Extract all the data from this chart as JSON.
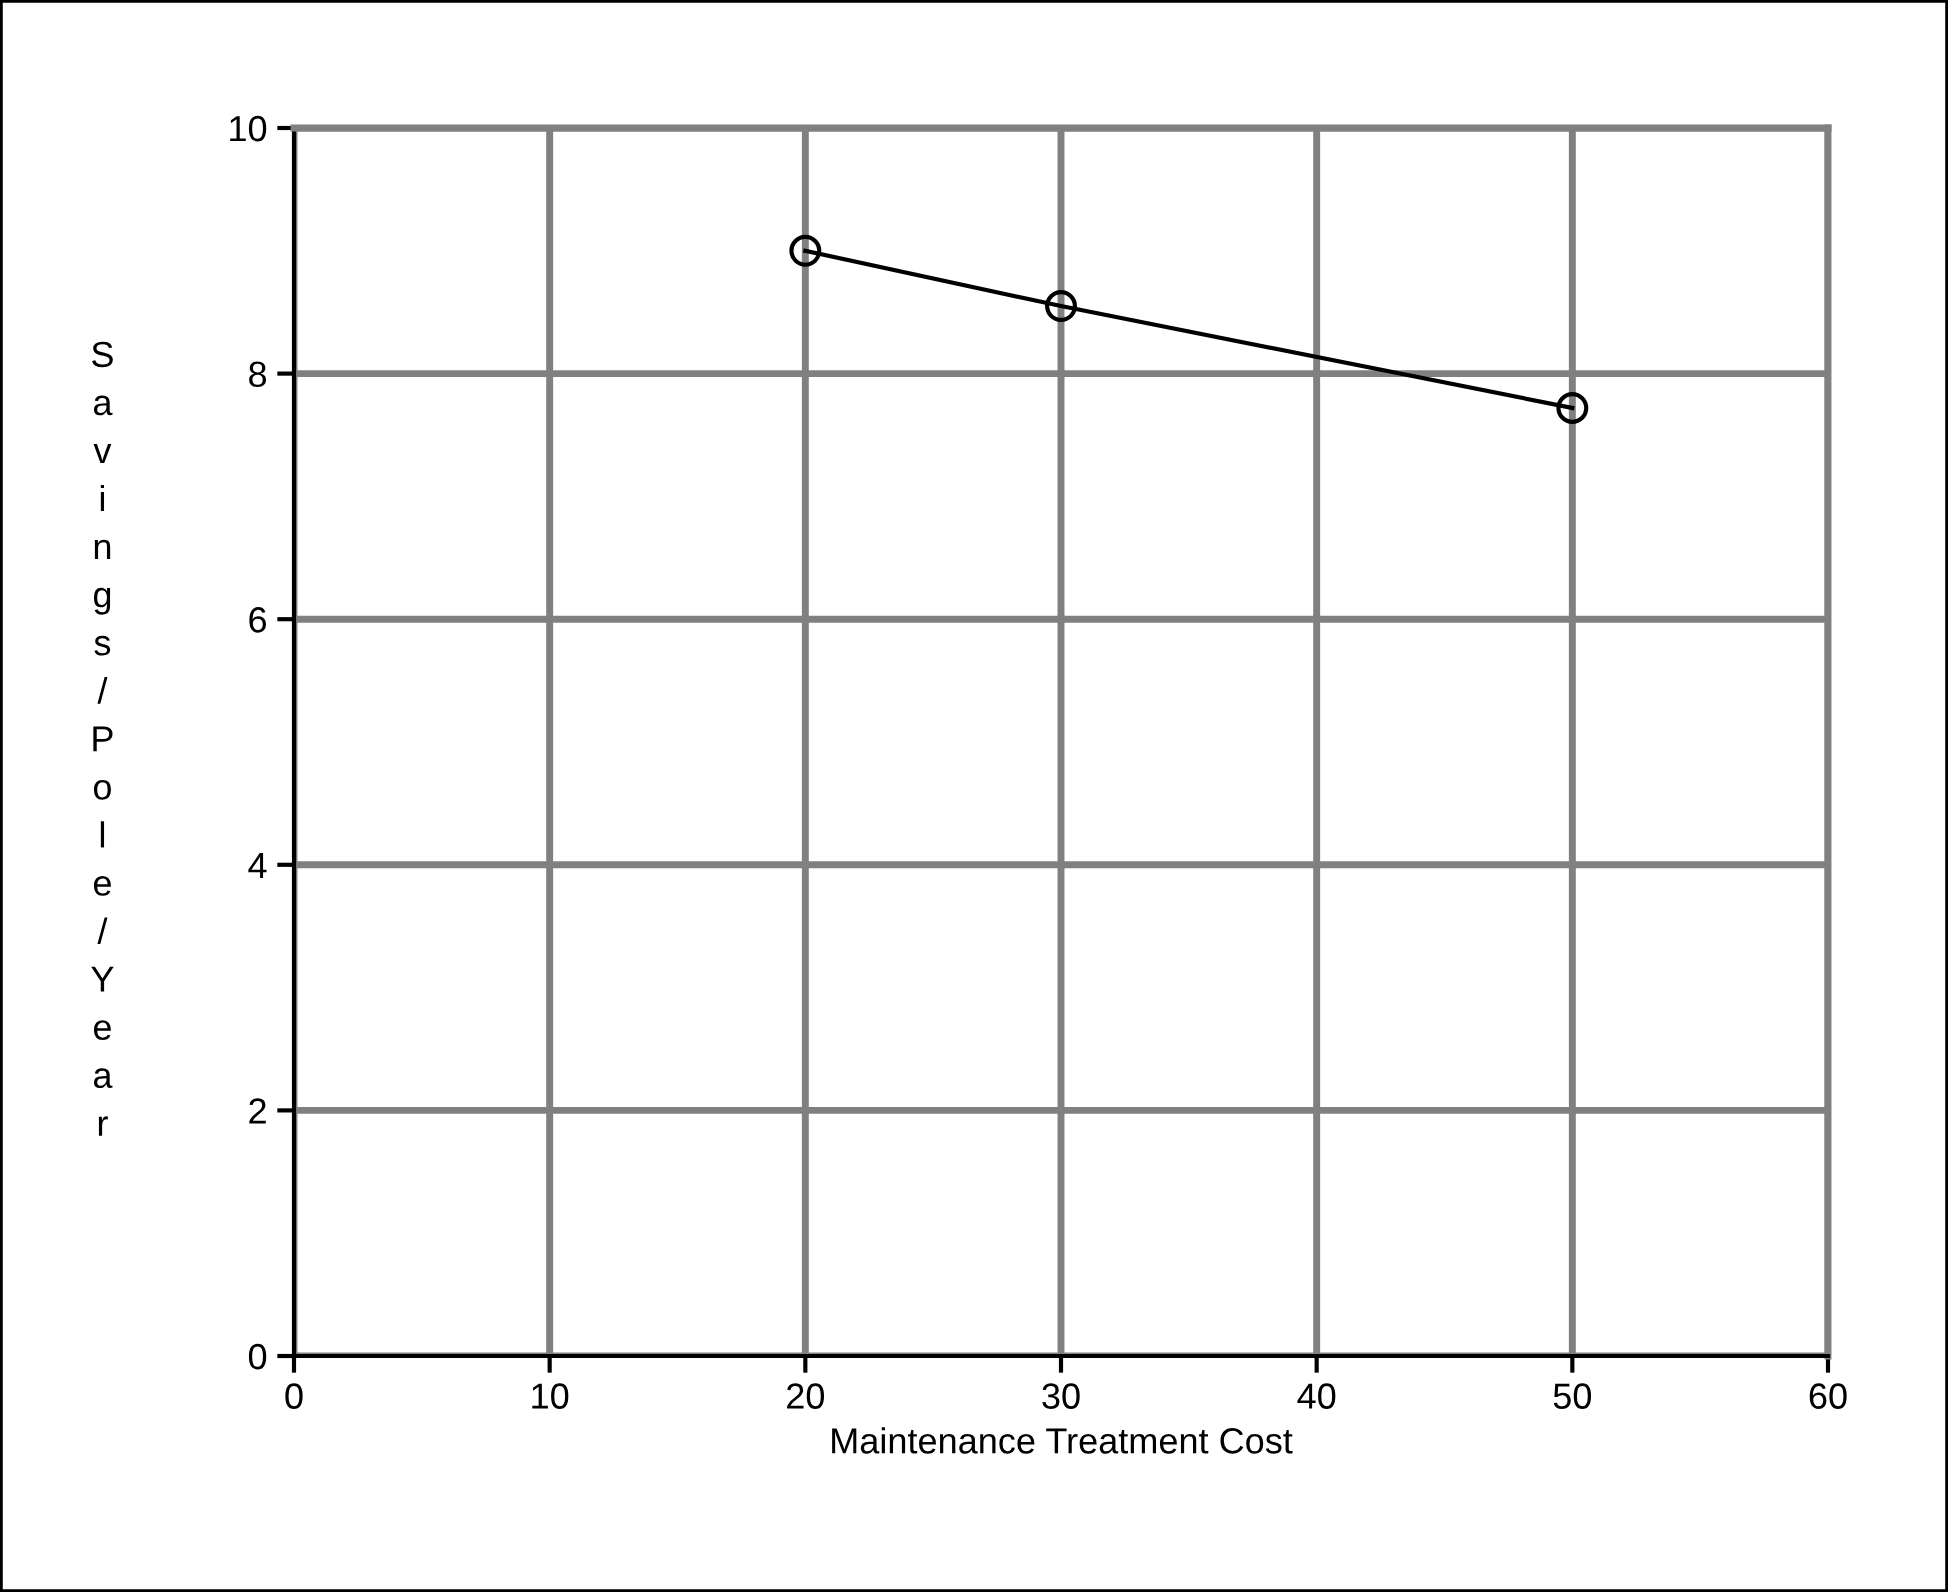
{
  "chart_data": {
    "type": "line",
    "xlabel": "Maintenance Treatment Cost",
    "ylabel": "Savings/Pole/Year",
    "x": [
      20,
      30,
      50
    ],
    "series": [
      {
        "color": "#000000",
        "values": [
          9.0,
          8.55,
          7.72
        ]
      }
    ],
    "xlim": [
      0,
      60
    ],
    "xticks": [
      0,
      10,
      20,
      30,
      40,
      50,
      60
    ],
    "ylim": [
      0,
      10
    ],
    "yticks": [
      0,
      2,
      4,
      6,
      8,
      10
    ],
    "grid": true,
    "marker": "circle",
    "line_style": "solid",
    "legend": false
  }
}
